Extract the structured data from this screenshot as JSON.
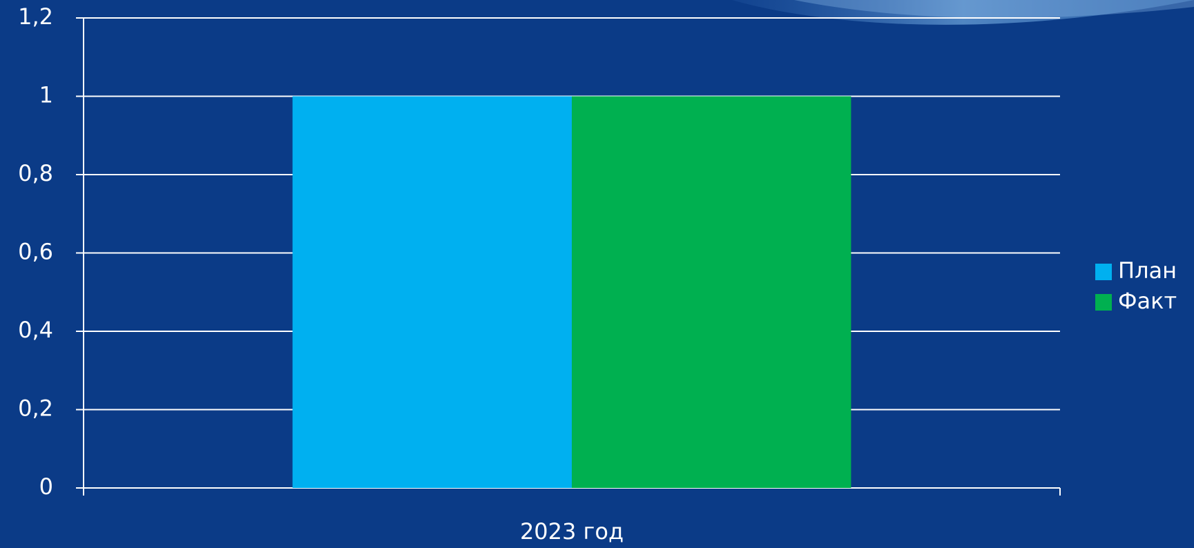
{
  "chart_data": {
    "type": "bar",
    "categories": [
      "2023 год"
    ],
    "series": [
      {
        "name": "План",
        "color": "#00b0f0",
        "values": [
          1
        ]
      },
      {
        "name": "Факт",
        "color": "#00b050",
        "values": [
          1
        ]
      }
    ],
    "ylim": [
      0,
      1.2
    ],
    "yticks": [
      0,
      {
        "value": 0.2,
        "label": "0,2"
      },
      {
        "value": 0.4,
        "label": "0,4"
      },
      {
        "value": 0.6,
        "label": "0,6"
      },
      {
        "value": 0.8,
        "label": "0,8"
      },
      1,
      {
        "value": 1.2,
        "label": "1,2"
      }
    ],
    "grid": true,
    "legend": "right"
  }
}
